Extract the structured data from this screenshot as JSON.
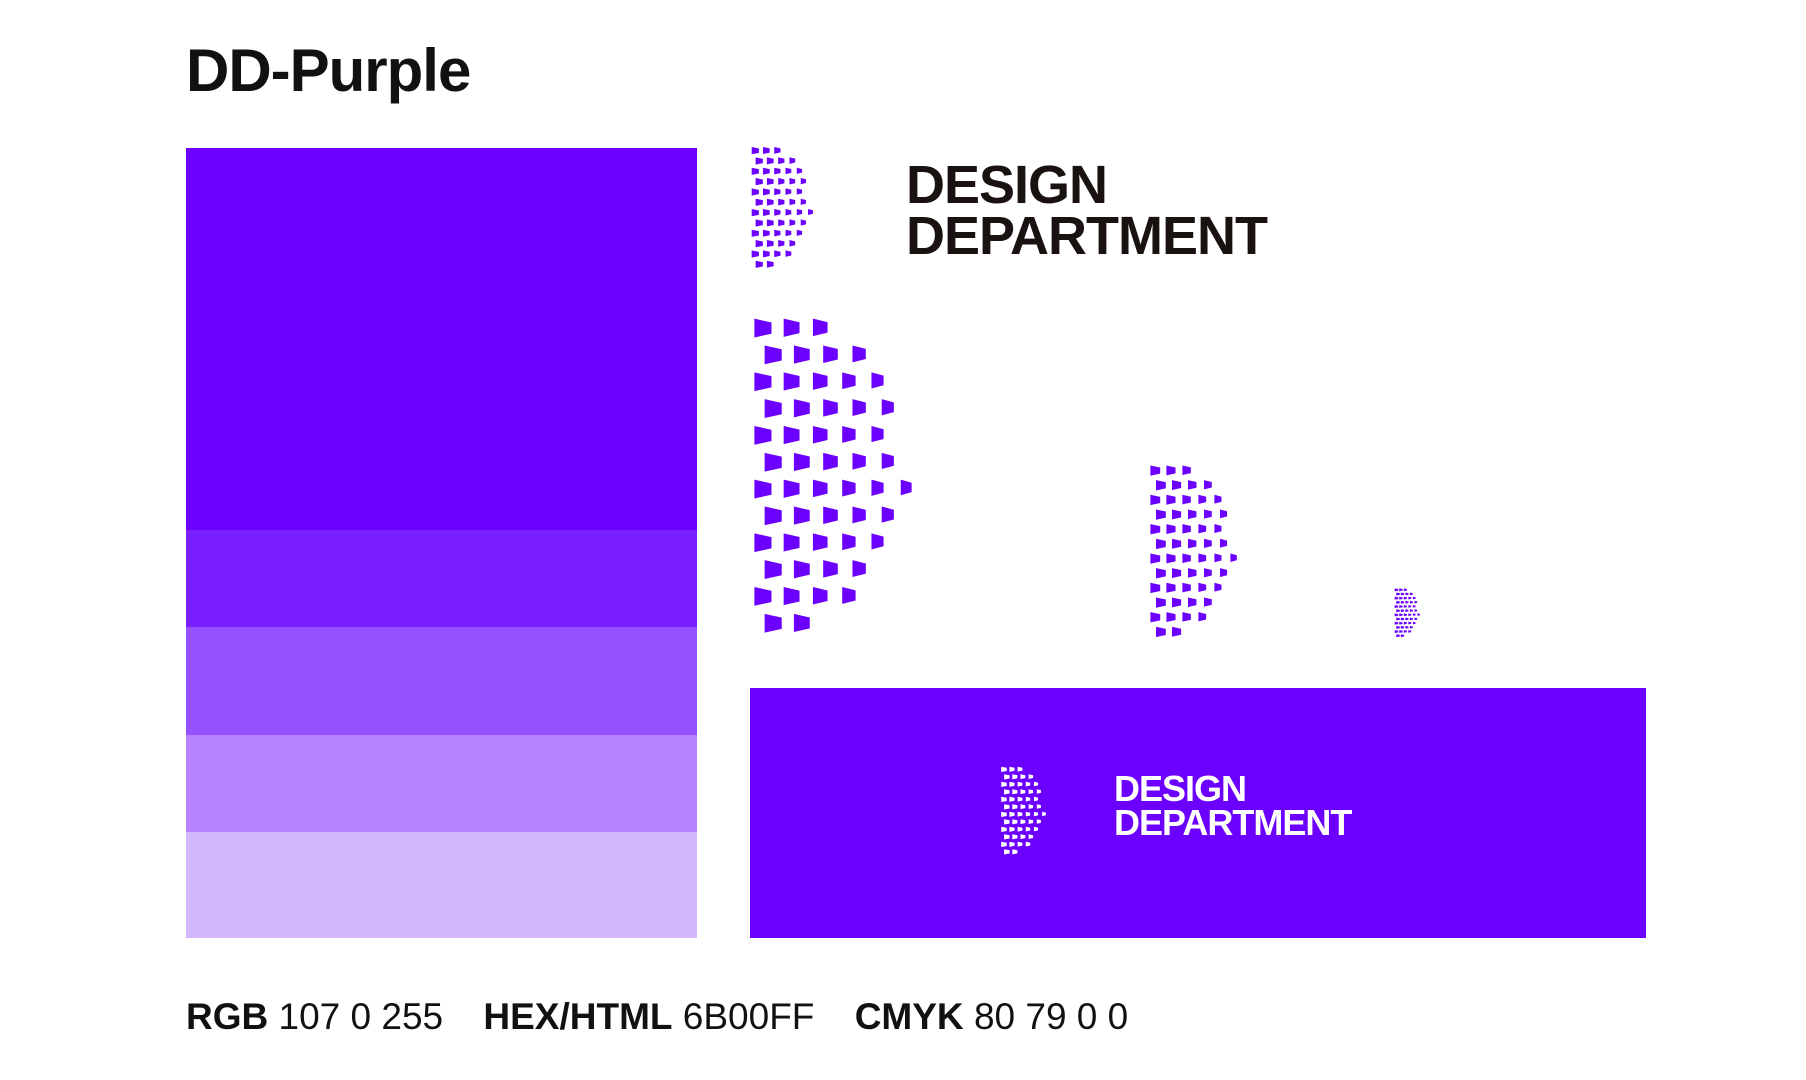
{
  "title": "DD-Purple",
  "colors": {
    "primary": "#6B00FF",
    "tints": [
      "#6B00FF",
      "#7A1FFF",
      "#9650FF",
      "#B682FF",
      "#D4B8FF"
    ]
  },
  "swatch_ratios": [
    0.483,
    0.123,
    0.137,
    0.123,
    0.134
  ],
  "logo": {
    "line1": "DESIGN",
    "line2": "DEPARTMENT"
  },
  "codes": {
    "rgb_label": "RGB",
    "rgb_value": "107 0 255",
    "hex_label": "HEX/HTML",
    "hex_value": "6B00FF",
    "cmyk_label": "CMYK",
    "cmyk_value": "80 79 0 0"
  },
  "icons": [
    "dd-mark-icon"
  ]
}
